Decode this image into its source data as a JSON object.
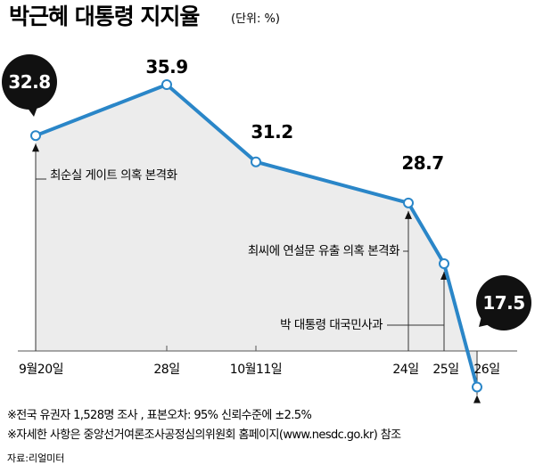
{
  "title": "박근혜 대통령 지지율",
  "unit": "(단위: %)",
  "chart_data": {
    "type": "area",
    "title": "박근혜 대통령 지지율",
    "unit": "%",
    "points": [
      {
        "x": "9월20일",
        "y": 32.8
      },
      {
        "x": "28일",
        "y": 35.9
      },
      {
        "x": "10월11일",
        "y": 31.2
      },
      {
        "x": "24일",
        "y": 28.7
      },
      {
        "x": "25일",
        "y": null
      },
      {
        "x": "26일",
        "y": 17.5
      }
    ],
    "value_labels": [
      "32.8",
      "35.9",
      "31.2",
      "28.7",
      "17.5"
    ],
    "annotations": [
      "최순실 게이트 의혹 본격화",
      "최씨에 연설문 유출 의혹 본격화",
      "박 대통령 대국민사과"
    ],
    "line_color": "#2a86c8",
    "fill_color": "#ececec"
  },
  "notes": [
    "※전국 유권자 1,528명 조사 , 표본오차: 95% 신뢰수준에 ±2.5%",
    "※자세한 사항은 중앙선거여론조사공정심의위원회 홈페이지(www.nesdc.go.kr) 참조"
  ],
  "source": "자료:리얼미터"
}
